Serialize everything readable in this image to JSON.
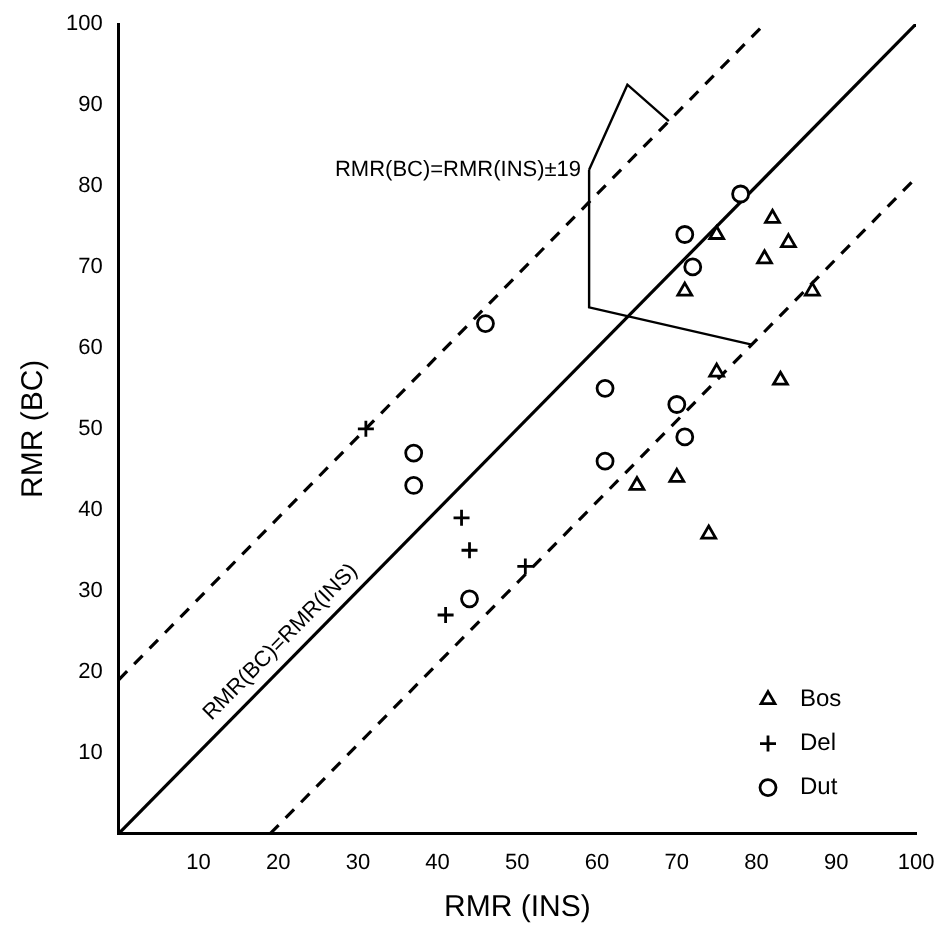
{
  "chart_data": {
    "type": "scatter",
    "xlabel": "RMR (INS)",
    "ylabel": "RMR (BC)",
    "xlim": [
      0,
      100
    ],
    "ylim": [
      0,
      100
    ],
    "xticks": [
      10,
      20,
      30,
      40,
      50,
      60,
      70,
      80,
      90,
      100
    ],
    "yticks": [
      10,
      20,
      30,
      40,
      50,
      60,
      70,
      80,
      90,
      100
    ],
    "grid": false,
    "legend": "bottom right",
    "annotations": [
      {
        "text": "RMR(BC)=RMR(INS)±19",
        "x": 69,
        "y": 88
      },
      {
        "text": "RMR(BC)=RMR(INS)",
        "x": 22,
        "y": 22
      }
    ],
    "series": [
      {
        "name": "Bos",
        "color": "#000000",
        "marker": "triangle",
        "x": [
          75,
          82,
          84,
          81,
          87,
          71,
          75,
          83,
          65,
          70,
          74
        ],
        "values": [
          74,
          76,
          73,
          71,
          67,
          67,
          57,
          56,
          43,
          44,
          37
        ]
      },
      {
        "name": "Del",
        "color": "#000000",
        "marker": "cross",
        "x": [
          31,
          43,
          44,
          41,
          51
        ],
        "values": [
          50,
          39,
          35,
          27,
          33
        ]
      },
      {
        "name": "Dut",
        "color": "#000000",
        "marker": "circle",
        "x": [
          46,
          61,
          71,
          72,
          78,
          70,
          71,
          61,
          44,
          37,
          37
        ],
        "values": [
          63,
          55,
          74,
          70,
          79,
          53,
          49,
          46,
          29,
          47,
          43
        ]
      },
      {
        "type": "line",
        "color": "#000000",
        "line_style": "solid",
        "x": [
          0,
          100
        ],
        "values": [
          0,
          100
        ]
      },
      {
        "type": "line",
        "color": "#000000",
        "line_style": "dashed",
        "x": [
          0,
          81
        ],
        "values": [
          19,
          100
        ]
      },
      {
        "type": "line",
        "color": "#000000",
        "line_style": "dashed",
        "x": [
          19,
          100
        ],
        "values": [
          0,
          81
        ]
      }
    ]
  }
}
